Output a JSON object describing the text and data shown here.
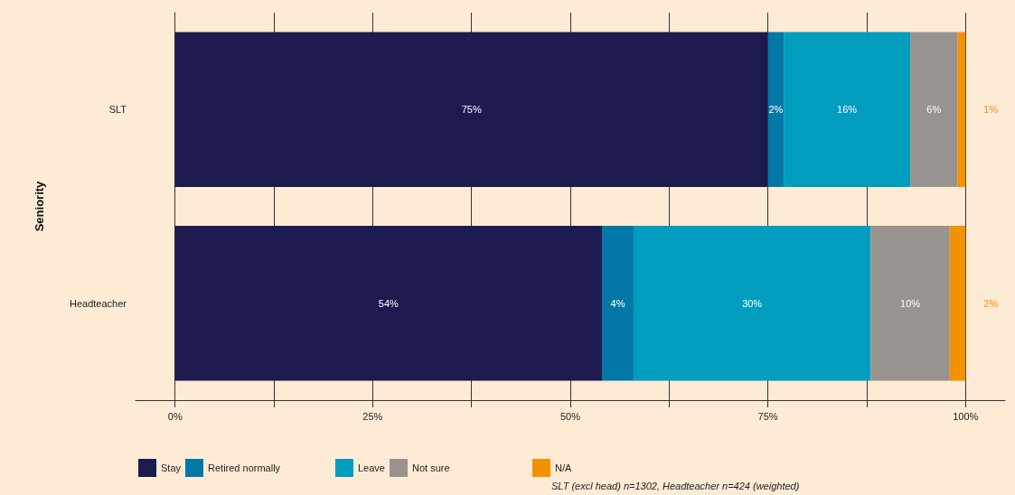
{
  "chart_data": {
    "type": "bar",
    "orientation": "horizontal",
    "stacked": true,
    "ylabel": "Seniority",
    "categories": [
      "SLT",
      "Headteacher"
    ],
    "series": [
      {
        "name": "Stay",
        "color": "#1c1a4e",
        "values": [
          75,
          54
        ],
        "value_labels": [
          "75%",
          "54%"
        ]
      },
      {
        "name": "Retired normally",
        "color": "#0378a6",
        "values": [
          2,
          4
        ],
        "value_labels": [
          "2%",
          "4%"
        ]
      },
      {
        "name": "Leave",
        "color": "#009dbf",
        "values": [
          16,
          30
        ],
        "value_labels": [
          "16%",
          "30%"
        ]
      },
      {
        "name": "Not sure",
        "color": "#99938f",
        "values": [
          6,
          10
        ],
        "value_labels": [
          "6%",
          "10%"
        ]
      },
      {
        "name": "N/A",
        "color": "#f39200",
        "values": [
          1,
          2
        ],
        "value_labels": [
          "1%",
          "2%"
        ]
      }
    ],
    "xlim": [
      -5,
      105
    ],
    "xticks": [
      {
        "value": 0,
        "label": "0%"
      },
      {
        "value": 12.5,
        "label": null
      },
      {
        "value": 25,
        "label": "25%"
      },
      {
        "value": 37.5,
        "label": null
      },
      {
        "value": 50,
        "label": "50%"
      },
      {
        "value": 62.5,
        "label": null
      },
      {
        "value": 75,
        "label": "75%"
      },
      {
        "value": 87.5,
        "label": null
      },
      {
        "value": 100,
        "label": "100%"
      }
    ],
    "grid": "x",
    "legend": "bottom",
    "annotations": [
      "SLT (excl head) n=1302, Headteacher n=424 (weighted)"
    ]
  }
}
